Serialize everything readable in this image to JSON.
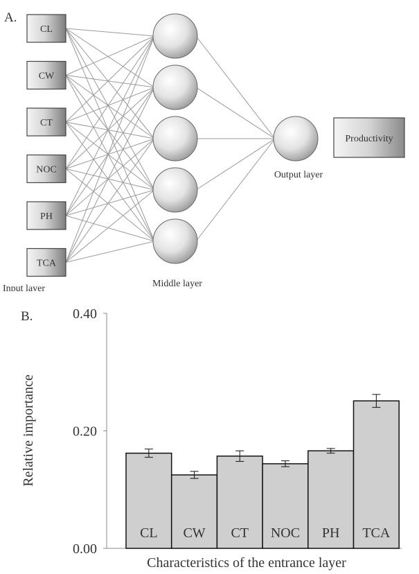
{
  "panel_a": {
    "letter": "A.",
    "input_nodes": [
      "CL",
      "CW",
      "CT",
      "NOC",
      "PH",
      "TCA"
    ],
    "middle_node_count": 5,
    "output_box": "Productivity",
    "captions": {
      "input": "Input layer",
      "middle": "Middle layer",
      "output": "Output layer"
    }
  },
  "panel_b": {
    "letter": "B."
  },
  "chart_data": {
    "type": "bar",
    "categories": [
      "CL",
      "CW",
      "CT",
      "NOC",
      "PH",
      "TCA"
    ],
    "values": [
      0.162,
      0.125,
      0.157,
      0.144,
      0.166,
      0.251
    ],
    "errors": [
      0.007,
      0.006,
      0.009,
      0.005,
      0.004,
      0.011
    ],
    "xlabel": "Characteristics of the entrance layer",
    "ylabel": "Relative importance",
    "ylim": [
      0,
      0.4
    ],
    "yticks": [
      "0.00",
      "0.20",
      "0.40"
    ],
    "grid": false,
    "colors": {
      "bar_fill": "#cfcfcf",
      "bar_stroke": "#111111"
    }
  }
}
